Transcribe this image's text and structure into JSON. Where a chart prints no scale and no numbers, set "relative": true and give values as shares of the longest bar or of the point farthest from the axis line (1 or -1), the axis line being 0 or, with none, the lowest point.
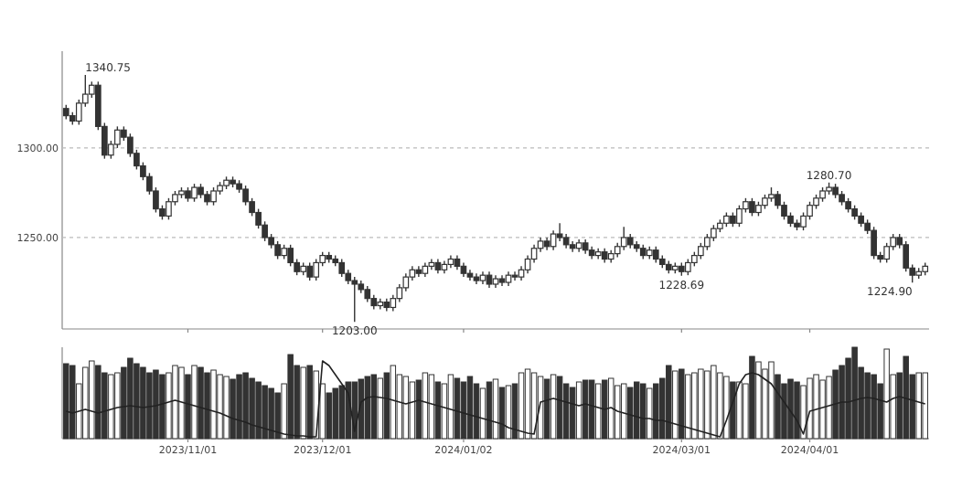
{
  "chart_data": [
    {
      "type": "candlestick",
      "color": "#333333",
      "ylim": [
        1199,
        1354
      ],
      "yticks": [
        {
          "value": 1300,
          "label": "1300.00"
        },
        {
          "value": 1250,
          "label": "1250.00"
        }
      ],
      "grid": "y",
      "tick_labels": "y",
      "categories": [
        null,
        null,
        null,
        null,
        null,
        null,
        null,
        null,
        null,
        null,
        null,
        null,
        null,
        null,
        null,
        null,
        null,
        null,
        null,
        "2023/11/01",
        null,
        null,
        null,
        null,
        null,
        null,
        null,
        null,
        null,
        null,
        null,
        null,
        null,
        null,
        null,
        null,
        null,
        null,
        null,
        null,
        "2023/12/01",
        null,
        null,
        null,
        null,
        null,
        null,
        null,
        null,
        null,
        null,
        null,
        null,
        null,
        null,
        null,
        null,
        null,
        null,
        null,
        null,
        null,
        "2024/01/02",
        null,
        null,
        null,
        null,
        null,
        null,
        null,
        null,
        null,
        null,
        null,
        null,
        null,
        null,
        null,
        null,
        null,
        null,
        null,
        null,
        null,
        null,
        null,
        null,
        null,
        null,
        null,
        null,
        null,
        null,
        null,
        null,
        null,
        "2024/03/01",
        null,
        null,
        null,
        null,
        null,
        null,
        null,
        null,
        null,
        null,
        null,
        null,
        null,
        null,
        null,
        null,
        null,
        null,
        null,
        "2024/04/01",
        null,
        null,
        null,
        null,
        null,
        null,
        null,
        null,
        null,
        null,
        null,
        null,
        null,
        null,
        null,
        null,
        null,
        null
      ],
      "ohlc": [
        [
          1322,
          1324,
          1316,
          1318
        ],
        [
          1318,
          1320,
          1313,
          1315
        ],
        [
          1315,
          1327,
          1313,
          1325
        ],
        [
          1325,
          1340.75,
          1323,
          1330
        ],
        [
          1330,
          1337,
          1328,
          1335
        ],
        [
          1335,
          1337,
          1310,
          1312
        ],
        [
          1312,
          1314,
          1294,
          1296
        ],
        [
          1296,
          1304,
          1294,
          1302
        ],
        [
          1302,
          1312,
          1300,
          1310
        ],
        [
          1310,
          1312,
          1304,
          1306
        ],
        [
          1306,
          1308,
          1295,
          1297
        ],
        [
          1297,
          1299,
          1288,
          1290
        ],
        [
          1290,
          1292,
          1282,
          1284
        ],
        [
          1284,
          1286,
          1274,
          1276
        ],
        [
          1276,
          1278,
          1264,
          1266
        ],
        [
          1266,
          1268,
          1260,
          1262
        ],
        [
          1262,
          1272,
          1260,
          1270
        ],
        [
          1270,
          1276,
          1268,
          1274
        ],
        [
          1274,
          1278,
          1272,
          1276
        ],
        [
          1276,
          1278,
          1270,
          1272
        ],
        [
          1272,
          1280,
          1270,
          1278
        ],
        [
          1278,
          1280,
          1272,
          1274
        ],
        [
          1274,
          1276,
          1268,
          1270
        ],
        [
          1270,
          1278,
          1268,
          1276
        ],
        [
          1276,
          1281,
          1274,
          1279
        ],
        [
          1279,
          1284,
          1277,
          1282
        ],
        [
          1282,
          1284,
          1278,
          1280
        ],
        [
          1280,
          1282,
          1275,
          1277
        ],
        [
          1277,
          1279,
          1268,
          1270
        ],
        [
          1270,
          1272,
          1262,
          1264
        ],
        [
          1264,
          1266,
          1255,
          1257
        ],
        [
          1257,
          1259,
          1248,
          1250
        ],
        [
          1250,
          1252,
          1244,
          1246
        ],
        [
          1246,
          1248,
          1238,
          1240
        ],
        [
          1240,
          1246,
          1238,
          1244
        ],
        [
          1244,
          1246,
          1234,
          1236
        ],
        [
          1236,
          1238,
          1229,
          1231
        ],
        [
          1231,
          1236,
          1229,
          1234
        ],
        [
          1234,
          1236,
          1226,
          1228
        ],
        [
          1228,
          1238,
          1226,
          1236
        ],
        [
          1236,
          1242,
          1234,
          1240
        ],
        [
          1240,
          1242,
          1236,
          1238
        ],
        [
          1238,
          1240,
          1234,
          1236
        ],
        [
          1236,
          1238,
          1228,
          1230
        ],
        [
          1230,
          1232,
          1224,
          1226
        ],
        [
          1226,
          1228,
          1203,
          1224
        ],
        [
          1224,
          1226,
          1219,
          1221
        ],
        [
          1221,
          1223,
          1214,
          1216
        ],
        [
          1216,
          1218,
          1210,
          1212
        ],
        [
          1212,
          1216,
          1210,
          1214
        ],
        [
          1214,
          1216,
          1209,
          1211
        ],
        [
          1211,
          1218,
          1209,
          1216
        ],
        [
          1216,
          1224,
          1214,
          1222
        ],
        [
          1222,
          1230,
          1220,
          1228
        ],
        [
          1228,
          1234,
          1226,
          1232
        ],
        [
          1232,
          1234,
          1228,
          1230
        ],
        [
          1230,
          1236,
          1228,
          1234
        ],
        [
          1234,
          1238,
          1232,
          1236
        ],
        [
          1236,
          1238,
          1230,
          1232
        ],
        [
          1232,
          1237,
          1230,
          1235
        ],
        [
          1235,
          1240,
          1233,
          1238
        ],
        [
          1238,
          1240,
          1232,
          1234
        ],
        [
          1234,
          1236,
          1228,
          1230
        ],
        [
          1230,
          1232,
          1226,
          1228
        ],
        [
          1228,
          1230,
          1224,
          1226
        ],
        [
          1226,
          1231,
          1224,
          1229
        ],
        [
          1229,
          1231,
          1222,
          1224
        ],
        [
          1224,
          1229,
          1222,
          1227
        ],
        [
          1227,
          1229,
          1223,
          1225
        ],
        [
          1225,
          1231,
          1223,
          1229
        ],
        [
          1229,
          1231,
          1226,
          1228
        ],
        [
          1228,
          1234,
          1226,
          1232
        ],
        [
          1232,
          1240,
          1230,
          1238
        ],
        [
          1238,
          1246,
          1236,
          1244
        ],
        [
          1244,
          1250,
          1242,
          1248
        ],
        [
          1248,
          1250,
          1243,
          1245
        ],
        [
          1245,
          1254,
          1243,
          1252
        ],
        [
          1252,
          1258,
          1248,
          1250
        ],
        [
          1250,
          1252,
          1244,
          1246
        ],
        [
          1246,
          1248,
          1242,
          1244
        ],
        [
          1244,
          1249,
          1242,
          1247
        ],
        [
          1247,
          1249,
          1241,
          1243
        ],
        [
          1243,
          1245,
          1238,
          1240
        ],
        [
          1240,
          1244,
          1238,
          1242
        ],
        [
          1242,
          1244,
          1236,
          1238
        ],
        [
          1238,
          1243,
          1236,
          1241
        ],
        [
          1241,
          1247,
          1239,
          1245
        ],
        [
          1245,
          1256,
          1243,
          1250
        ],
        [
          1250,
          1252,
          1244,
          1246
        ],
        [
          1246,
          1248,
          1242,
          1244
        ],
        [
          1244,
          1246,
          1238,
          1240
        ],
        [
          1240,
          1245,
          1238,
          1243
        ],
        [
          1243,
          1245,
          1236,
          1238
        ],
        [
          1238,
          1240,
          1233,
          1235
        ],
        [
          1235,
          1237,
          1230,
          1232
        ],
        [
          1232,
          1236,
          1230,
          1234
        ],
        [
          1234,
          1236,
          1228.69,
          1231
        ],
        [
          1231,
          1238,
          1229,
          1236
        ],
        [
          1236,
          1242,
          1234,
          1240
        ],
        [
          1240,
          1247,
          1238,
          1245
        ],
        [
          1245,
          1252,
          1243,
          1250
        ],
        [
          1250,
          1257,
          1248,
          1255
        ],
        [
          1255,
          1260,
          1253,
          1258
        ],
        [
          1258,
          1264,
          1256,
          1262
        ],
        [
          1262,
          1264,
          1256,
          1258
        ],
        [
          1258,
          1268,
          1256,
          1266
        ],
        [
          1266,
          1272,
          1264,
          1270
        ],
        [
          1270,
          1272,
          1262,
          1264
        ],
        [
          1264,
          1270,
          1262,
          1268
        ],
        [
          1268,
          1274,
          1266,
          1272
        ],
        [
          1272,
          1278,
          1270,
          1274
        ],
        [
          1274,
          1276,
          1266,
          1268
        ],
        [
          1268,
          1270,
          1260,
          1262
        ],
        [
          1262,
          1264,
          1256,
          1258
        ],
        [
          1258,
          1260,
          1254,
          1256
        ],
        [
          1256,
          1264,
          1254,
          1262
        ],
        [
          1262,
          1270,
          1260,
          1268
        ],
        [
          1268,
          1274,
          1266,
          1272
        ],
        [
          1272,
          1278,
          1270,
          1276
        ],
        [
          1276,
          1280.7,
          1274,
          1278
        ],
        [
          1278,
          1280,
          1272,
          1274
        ],
        [
          1274,
          1276,
          1268,
          1270
        ],
        [
          1270,
          1272,
          1264,
          1266
        ],
        [
          1266,
          1268,
          1260,
          1262
        ],
        [
          1262,
          1264,
          1256,
          1258
        ],
        [
          1258,
          1260,
          1252,
          1254
        ],
        [
          1254,
          1256,
          1238,
          1240
        ],
        [
          1240,
          1242,
          1236,
          1238
        ],
        [
          1238,
          1247,
          1236,
          1245
        ],
        [
          1245,
          1252,
          1243,
          1250
        ],
        [
          1250,
          1252,
          1244,
          1246
        ],
        [
          1246,
          1248,
          1231,
          1233
        ],
        [
          1233,
          1235,
          1224.9,
          1229
        ],
        [
          1229,
          1233,
          1227,
          1231
        ],
        [
          1231,
          1236,
          1229,
          1234
        ]
      ],
      "annotations": [
        "1340.75",
        "1203.00",
        "1228.69",
        "1280.70",
        "1224.90"
      ]
    },
    {
      "type": "bar",
      "relative": true,
      "tick_labels": "x",
      "categories": [
        null,
        null,
        null,
        null,
        null,
        null,
        null,
        null,
        null,
        null,
        null,
        null,
        null,
        null,
        null,
        null,
        null,
        null,
        null,
        "2023/11/01",
        null,
        null,
        null,
        null,
        null,
        null,
        null,
        null,
        null,
        null,
        null,
        null,
        null,
        null,
        null,
        null,
        null,
        null,
        null,
        null,
        "2023/12/01",
        null,
        null,
        null,
        null,
        null,
        null,
        null,
        null,
        null,
        null,
        null,
        null,
        null,
        null,
        null,
        null,
        null,
        null,
        null,
        null,
        null,
        "2024/01/02",
        null,
        null,
        null,
        null,
        null,
        null,
        null,
        null,
        null,
        null,
        null,
        null,
        null,
        null,
        null,
        null,
        null,
        null,
        null,
        null,
        null,
        null,
        null,
        null,
        null,
        null,
        null,
        null,
        null,
        null,
        null,
        null,
        null,
        "2024/03/01",
        null,
        null,
        null,
        null,
        null,
        null,
        null,
        null,
        null,
        null,
        null,
        null,
        null,
        null,
        null,
        null,
        null,
        null,
        null,
        "2024/04/01",
        null,
        null,
        null,
        null,
        null,
        null,
        null,
        null,
        null,
        null,
        null,
        null,
        null,
        null,
        null,
        null,
        null,
        null
      ],
      "series": [
        {
          "color": "#333333",
          "values": [
            0.82,
            0.8,
            0.6,
            0.78,
            0.85,
            0.8,
            0.72,
            0.7,
            0.72,
            0.78,
            0.88,
            0.82,
            0.78,
            0.72,
            0.75,
            0.7,
            0.72,
            0.8,
            0.78,
            0.7,
            0.8,
            0.78,
            0.72,
            0.75,
            0.7,
            0.68,
            0.65,
            0.7,
            0.72,
            0.66,
            0.62,
            0.58,
            0.55,
            0.5,
            0.6,
            0.92,
            0.8,
            0.78,
            0.8,
            0.74,
            0.6,
            0.5,
            0.55,
            0.58,
            0.62,
            0.62,
            0.65,
            0.68,
            0.7,
            0.66,
            0.72,
            0.8,
            0.7,
            0.68,
            0.62,
            0.64,
            0.72,
            0.7,
            0.62,
            0.6,
            0.7,
            0.66,
            0.62,
            0.68,
            0.6,
            0.55,
            0.62,
            0.65,
            0.56,
            0.58,
            0.6,
            0.72,
            0.76,
            0.72,
            0.68,
            0.65,
            0.7,
            0.68,
            0.6,
            0.56,
            0.62,
            0.64,
            0.64,
            0.6,
            0.64,
            0.66,
            0.58,
            0.6,
            0.56,
            0.62,
            0.6,
            0.55,
            0.6,
            0.66,
            0.8,
            0.74,
            0.76,
            0.7,
            0.72,
            0.76,
            0.74,
            0.8,
            0.72,
            0.68,
            0.62,
            0.62,
            0.6,
            0.9,
            0.84,
            0.76,
            0.84,
            0.7,
            0.6,
            0.65,
            0.62,
            0.58,
            0.66,
            0.7,
            0.64,
            0.68,
            0.75,
            0.8,
            0.88,
            1.0,
            0.78,
            0.72,
            0.7,
            0.6,
            0.98,
            0.7,
            0.72,
            0.9,
            0.7,
            0.72,
            0.72
          ],
          "colors": [
            "#333333",
            "#333333",
            "#ffffff",
            "#ffffff",
            "#ffffff",
            "#333333",
            "#333333",
            "#ffffff",
            "#ffffff",
            "#333333",
            "#333333",
            "#333333",
            "#333333",
            "#333333",
            "#333333",
            "#333333",
            "#ffffff",
            "#ffffff",
            "#ffffff",
            "#333333",
            "#ffffff",
            "#333333",
            "#333333",
            "#ffffff",
            "#ffffff",
            "#ffffff",
            "#333333",
            "#333333",
            "#333333",
            "#333333",
            "#333333",
            "#333333",
            "#333333",
            "#333333",
            "#ffffff",
            "#333333",
            "#333333",
            "#ffffff",
            "#333333",
            "#ffffff",
            "#ffffff",
            "#333333",
            "#333333",
            "#333333",
            "#333333",
            "#333333",
            "#333333",
            "#333333",
            "#333333",
            "#ffffff",
            "#333333",
            "#ffffff",
            "#ffffff",
            "#ffffff",
            "#ffffff",
            "#333333",
            "#ffffff",
            "#ffffff",
            "#333333",
            "#ffffff",
            "#ffffff",
            "#333333",
            "#333333",
            "#333333",
            "#333333",
            "#ffffff",
            "#333333",
            "#ffffff",
            "#333333",
            "#ffffff",
            "#333333",
            "#ffffff",
            "#ffffff",
            "#ffffff",
            "#ffffff",
            "#333333",
            "#ffffff",
            "#333333",
            "#333333",
            "#333333",
            "#ffffff",
            "#333333",
            "#333333",
            "#ffffff",
            "#333333",
            "#ffffff",
            "#ffffff",
            "#ffffff",
            "#333333",
            "#333333",
            "#333333",
            "#ffffff",
            "#333333",
            "#333333",
            "#333333",
            "#ffffff",
            "#333333",
            "#ffffff",
            "#ffffff",
            "#ffffff",
            "#ffffff",
            "#ffffff",
            "#ffffff",
            "#ffffff",
            "#333333",
            "#ffffff",
            "#ffffff",
            "#333333",
            "#ffffff",
            "#ffffff",
            "#ffffff",
            "#333333",
            "#333333",
            "#333333",
            "#333333",
            "#ffffff",
            "#ffffff",
            "#ffffff",
            "#ffffff",
            "#ffffff",
            "#333333",
            "#333333",
            "#333333",
            "#333333",
            "#333333",
            "#333333",
            "#333333",
            "#333333",
            "#ffffff",
            "#ffffff",
            "#333333",
            "#333333",
            "#333333",
            "#ffffff",
            "#ffffff"
          ]
        },
        {
          "type": "line",
          "color": "#222222",
          "values": [
            0.3,
            0.28,
            0.3,
            0.32,
            0.3,
            0.28,
            0.3,
            0.32,
            0.34,
            0.35,
            0.36,
            0.35,
            0.34,
            0.35,
            0.36,
            0.38,
            0.4,
            0.42,
            0.4,
            0.38,
            0.36,
            0.34,
            0.32,
            0.3,
            0.28,
            0.25,
            0.22,
            0.2,
            0.18,
            0.15,
            0.13,
            0.11,
            0.09,
            0.07,
            0.05,
            0.04,
            0.03,
            0.03,
            0.02,
            0.02,
            0.85,
            0.8,
            0.7,
            0.6,
            0.5,
            0.08,
            0.4,
            0.45,
            0.46,
            0.45,
            0.44,
            0.42,
            0.4,
            0.38,
            0.4,
            0.42,
            0.4,
            0.38,
            0.36,
            0.34,
            0.32,
            0.3,
            0.28,
            0.26,
            0.24,
            0.22,
            0.2,
            0.18,
            0.16,
            0.12,
            0.1,
            0.08,
            0.06,
            0.05,
            0.4,
            0.42,
            0.44,
            0.42,
            0.4,
            0.38,
            0.36,
            0.38,
            0.36,
            0.34,
            0.32,
            0.34,
            0.3,
            0.28,
            0.26,
            0.24,
            0.22,
            0.22,
            0.2,
            0.2,
            0.18,
            0.16,
            0.14,
            0.12,
            0.1,
            0.08,
            0.06,
            0.04,
            0.02,
            0.2,
            0.4,
            0.6,
            0.7,
            0.72,
            0.7,
            0.65,
            0.6,
            0.5,
            0.4,
            0.3,
            0.2,
            0.05,
            0.3,
            0.32,
            0.34,
            0.36,
            0.38,
            0.4,
            0.4,
            0.42,
            0.44,
            0.45,
            0.44,
            0.42,
            0.4,
            0.44,
            0.46,
            0.44,
            0.42,
            0.4,
            0.38
          ]
        }
      ]
    }
  ]
}
